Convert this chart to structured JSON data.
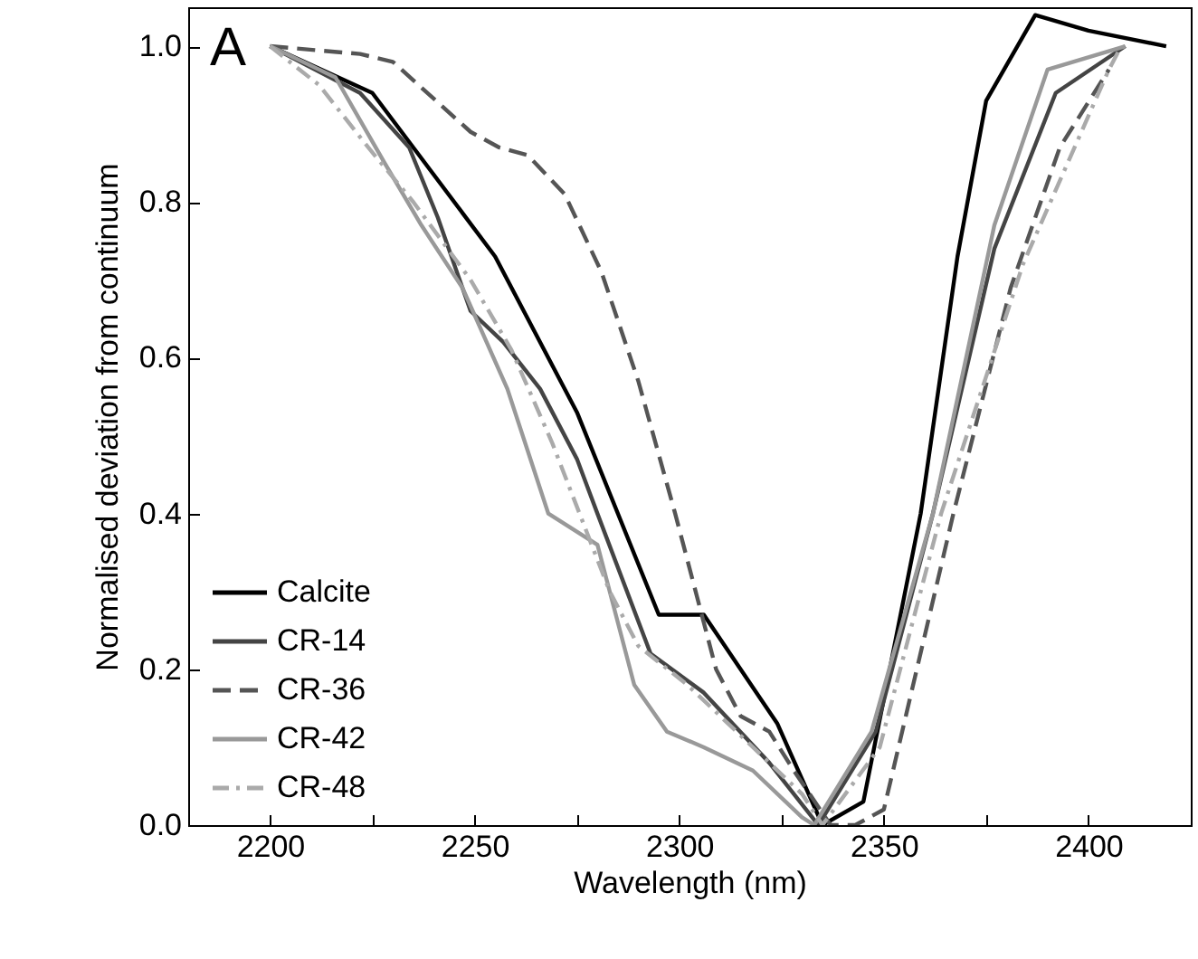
{
  "chart_data": {
    "type": "line",
    "xlabel": "Wavelength (nm)",
    "ylabel": "Normalised deviation from continuum",
    "annotations": [
      "A"
    ],
    "xlim": [
      2180,
      2425
    ],
    "ylim": [
      0,
      1.05
    ],
    "xticks": [
      2200,
      {
        "value": 2225,
        "label": null
      },
      2250,
      {
        "value": 2275,
        "label": null
      },
      2300,
      {
        "value": 2325,
        "label": null
      },
      2350,
      {
        "value": 2375,
        "label": null
      },
      2400
    ],
    "yticks": [
      {
        "value": 0,
        "label": "0.0"
      },
      {
        "value": 0.2,
        "label": "0.2"
      },
      {
        "value": 0.4,
        "label": "0.4"
      },
      {
        "value": 0.6,
        "label": "0.6"
      },
      {
        "value": 0.8,
        "label": "0.8"
      },
      {
        "value": 1,
        "label": "1.0"
      }
    ],
    "grid": false,
    "legend": "bottom left",
    "marker": "none",
    "series": [
      {
        "name": "Calcite",
        "color": "#000000",
        "line_style": "solid",
        "x": [
          2200,
          2225,
          2255,
          2275,
          2295,
          2306,
          2324,
          2335,
          2345,
          2359,
          2368,
          2375,
          2387,
          2400,
          2419
        ],
        "values": [
          1.0,
          0.94,
          0.73,
          0.53,
          0.27,
          0.27,
          0.13,
          0.0,
          0.03,
          0.4,
          0.73,
          0.93,
          1.04,
          1.02,
          1.0
        ]
      },
      {
        "name": "CR-14",
        "color": "#444444",
        "line_style": "solid",
        "x": [
          2200,
          2222,
          2234,
          2241,
          2249,
          2257,
          2266,
          2275,
          2280,
          2293,
          2306,
          2322,
          2334,
          2348,
          2362,
          2377,
          2392,
          2409
        ],
        "values": [
          1.0,
          0.94,
          0.87,
          0.78,
          0.66,
          0.62,
          0.56,
          0.47,
          0.4,
          0.22,
          0.17,
          0.08,
          0.0,
          0.12,
          0.4,
          0.74,
          0.94,
          1.0
        ]
      },
      {
        "name": "CR-36",
        "color": "#555555",
        "line_style": "dashed",
        "x": [
          2200,
          2222,
          2230,
          2249,
          2256,
          2263,
          2272,
          2281,
          2290,
          2299,
          2303,
          2309,
          2315,
          2322,
          2328,
          2337,
          2343,
          2350,
          2367,
          2381,
          2393,
          2405
        ],
        "values": [
          1.0,
          0.99,
          0.98,
          0.89,
          0.87,
          0.86,
          0.81,
          0.71,
          0.57,
          0.4,
          0.32,
          0.2,
          0.14,
          0.12,
          0.07,
          0.0,
          0.0,
          0.02,
          0.4,
          0.69,
          0.87,
          0.97
        ]
      },
      {
        "name": "CR-42",
        "color": "#999999",
        "line_style": "solid",
        "x": [
          2200,
          2216,
          2228,
          2237,
          2247,
          2258,
          2268,
          2280,
          2289,
          2297,
          2306,
          2318,
          2330,
          2333,
          2347,
          2362,
          2377,
          2390,
          2409
        ],
        "values": [
          1.0,
          0.96,
          0.85,
          0.77,
          0.69,
          0.56,
          0.4,
          0.36,
          0.18,
          0.12,
          0.1,
          0.07,
          0.01,
          0.0,
          0.12,
          0.4,
          0.77,
          0.97,
          1.0
        ]
      },
      {
        "name": "CR-48",
        "color": "#aaaaaa",
        "line_style": "dashdot",
        "x": [
          2200,
          2212,
          2224,
          2235,
          2249,
          2259,
          2269,
          2283,
          2290,
          2302,
          2316,
          2330,
          2335,
          2349,
          2364,
          2384,
          2405,
          2408
        ],
        "values": [
          1.0,
          0.95,
          0.87,
          0.8,
          0.7,
          0.61,
          0.49,
          0.3,
          0.23,
          0.18,
          0.11,
          0.04,
          0.0,
          0.1,
          0.4,
          0.72,
          0.97,
          1.0
        ]
      }
    ]
  }
}
